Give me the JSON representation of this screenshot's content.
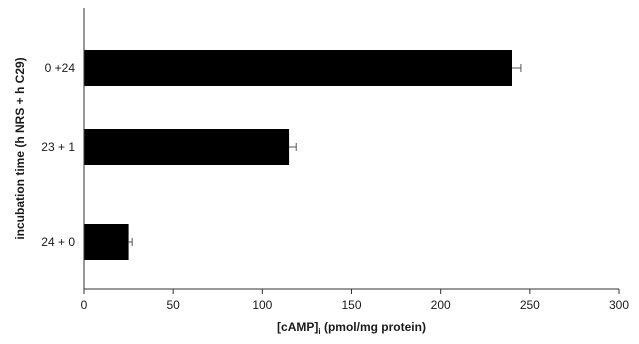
{
  "chart_data": {
    "type": "bar",
    "orientation": "horizontal",
    "title": "",
    "categories": [
      "0 +24",
      "23 + 1",
      "24 + 0"
    ],
    "values": [
      240,
      115,
      25
    ],
    "errors": [
      5,
      4,
      2
    ],
    "xlabel_main": "[cAMP]",
    "xlabel_sub": "i",
    "xlabel_rest": " (pmol/mg protein)",
    "ylabel": "incubation time (h NRS + h C29)",
    "xlim": [
      0,
      300
    ],
    "xticks": [
      0,
      50,
      100,
      150,
      200,
      250,
      300
    ],
    "grid": false,
    "legend": "none",
    "bar_color": "#000000"
  }
}
